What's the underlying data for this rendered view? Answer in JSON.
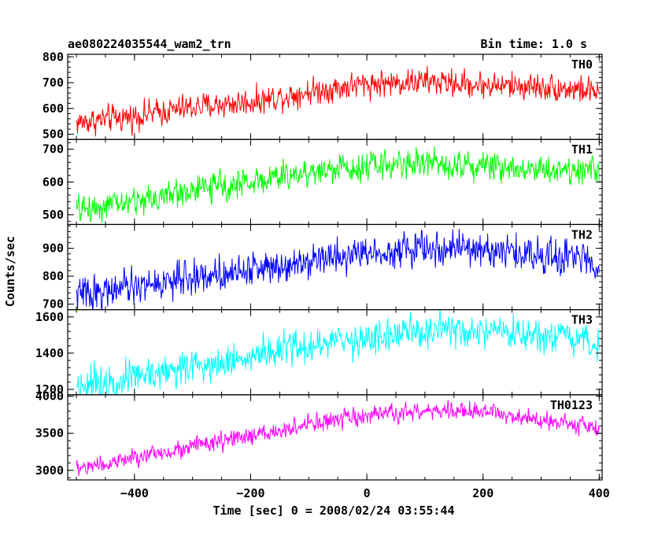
{
  "header": {
    "title": "ae080224035544_wam2_trn",
    "bin_time": "Bin time: 1.0 s"
  },
  "chart_data": {
    "type": "line",
    "title": "ae080224035544_wam2_trn",
    "xlabel": "Time [sec] 0 = 2008/02/24 03:55:44",
    "ylabel": "Counts/sec",
    "xlim": [
      -515,
      405
    ],
    "x_ticks": [
      -400,
      -200,
      0,
      200,
      400
    ],
    "x_tick_labels": [
      "−400",
      "−200",
      "0",
      "200",
      "400"
    ],
    "x_range": [
      -500,
      400
    ],
    "bin_time_s": 1.0,
    "grid": false,
    "panels": [
      {
        "name": "TH0",
        "color": "#ff0000",
        "ylim": [
          480,
          810
        ],
        "y_ticks": [
          500,
          600,
          700,
          800
        ],
        "trend": {
          "x": [
            -500,
            -400,
            -300,
            -200,
            -100,
            0,
            100,
            200,
            300,
            400
          ],
          "y": [
            545,
            570,
            605,
            625,
            665,
            695,
            705,
            690,
            685,
            665
          ]
        },
        "noise": 30
      },
      {
        "name": "TH1",
        "color": "#00ff00",
        "ylim": [
          470,
          730
        ],
        "y_ticks": [
          500,
          600,
          700
        ],
        "trend": {
          "x": [
            -500,
            -400,
            -300,
            -200,
            -100,
            0,
            100,
            200,
            300,
            400
          ],
          "y": [
            515,
            540,
            575,
            600,
            630,
            650,
            660,
            650,
            640,
            635
          ]
        },
        "noise": 25
      },
      {
        "name": "TH2",
        "color": "#0000ff",
        "ylim": [
          680,
          985
        ],
        "y_ticks": [
          700,
          800,
          900
        ],
        "trend": {
          "x": [
            -500,
            -400,
            -300,
            -200,
            -100,
            0,
            100,
            200,
            300,
            400
          ],
          "y": [
            735,
            760,
            795,
            825,
            860,
            885,
            900,
            895,
            875,
            855
          ]
        },
        "noise": 35
      },
      {
        "name": "TH3",
        "color": "#00ffff",
        "ylim": [
          1170,
          1640
        ],
        "y_ticks": [
          1200,
          1400,
          1600
        ],
        "trend": {
          "x": [
            -500,
            -400,
            -300,
            -200,
            -100,
            0,
            100,
            200,
            300,
            400
          ],
          "y": [
            1225,
            1270,
            1330,
            1380,
            1440,
            1480,
            1520,
            1510,
            1485,
            1450
          ]
        },
        "noise": 55
      },
      {
        "name": "TH0123",
        "color": "#ff00ff",
        "ylim": [
          2870,
          4020
        ],
        "y_ticks": [
          3000,
          3500,
          4000
        ],
        "trend": {
          "x": [
            -500,
            -400,
            -300,
            -200,
            -100,
            0,
            100,
            200,
            300,
            400
          ],
          "y": [
            3020,
            3160,
            3330,
            3450,
            3620,
            3730,
            3800,
            3790,
            3700,
            3560
          ]
        },
        "noise": 70
      }
    ]
  }
}
